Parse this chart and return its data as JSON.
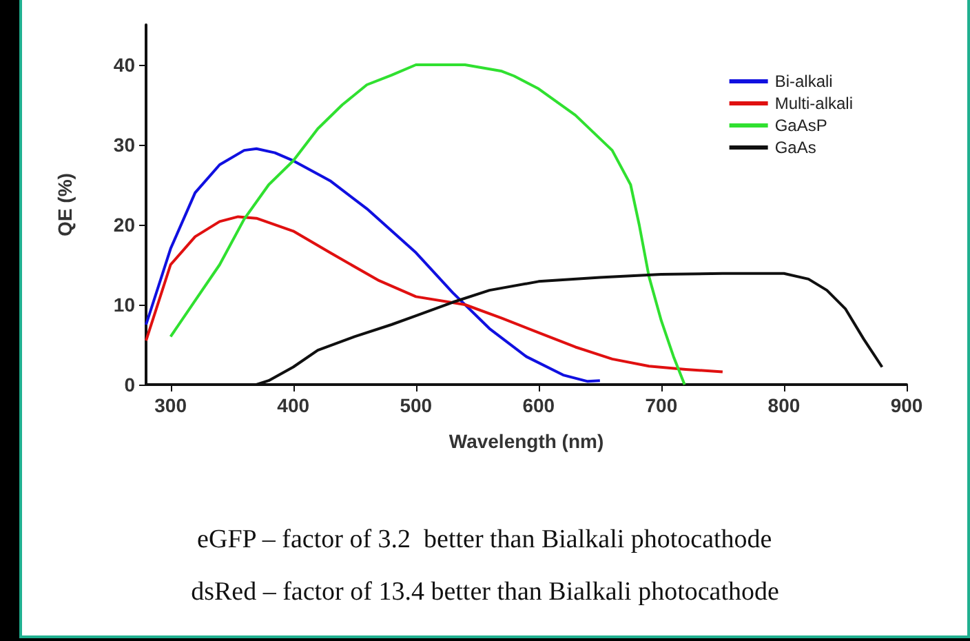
{
  "chart_data": {
    "type": "line",
    "xlabel": "Wavelength (nm)",
    "ylabel": "QE (%)",
    "xlim": [
      280,
      900
    ],
    "xticks": [
      300,
      400,
      500,
      600,
      700,
      800,
      900
    ],
    "ylim": [
      0,
      45
    ],
    "yticks": [
      0,
      10,
      20,
      30,
      40
    ],
    "grid": false,
    "legend": "top right",
    "marker": "none",
    "line_style": "solid",
    "series": [
      {
        "name": "Bi-alkali",
        "color": "#1010e0",
        "x": [
          280,
          300,
          320,
          340,
          360,
          370,
          385,
          400,
          430,
          460,
          500,
          530,
          560,
          590,
          620,
          640,
          650
        ],
        "values": [
          7.5,
          17,
          24,
          27.5,
          29.3,
          29.5,
          29,
          28,
          25.5,
          22,
          16.5,
          11.5,
          7,
          3.5,
          1.2,
          0.4,
          0.5
        ]
      },
      {
        "name": "Multi-alkali",
        "color": "#e01010",
        "x": [
          280,
          300,
          320,
          340,
          355,
          370,
          400,
          430,
          470,
          500,
          540,
          570,
          600,
          630,
          660,
          690,
          720,
          750
        ],
        "values": [
          5.5,
          15,
          18.5,
          20.4,
          21,
          20.8,
          19.2,
          16.5,
          13,
          11,
          10,
          8.3,
          6.5,
          4.7,
          3.2,
          2.3,
          1.9,
          1.6
        ]
      },
      {
        "name": "GaAsP",
        "color": "#30e030",
        "x": [
          300,
          320,
          340,
          360,
          380,
          400,
          420,
          440,
          460,
          480,
          500,
          540,
          570,
          580,
          600,
          630,
          660,
          675,
          682,
          690,
          700,
          710,
          719
        ],
        "values": [
          6,
          10.5,
          15,
          20.7,
          25,
          28,
          32,
          35,
          37.5,
          38.7,
          40,
          40,
          39.2,
          38.6,
          37,
          33.7,
          29.3,
          25,
          20,
          13.5,
          8,
          3.5,
          0
        ]
      },
      {
        "name": "GaAs",
        "color": "#101010",
        "x": [
          370,
          380,
          400,
          420,
          450,
          480,
          500,
          530,
          560,
          600,
          650,
          700,
          750,
          800,
          820,
          835,
          850,
          865,
          880
        ],
        "values": [
          0,
          0.5,
          2.2,
          4.3,
          6,
          7.5,
          8.6,
          10.3,
          11.8,
          12.9,
          13.4,
          13.8,
          13.9,
          13.9,
          13.2,
          11.8,
          9.5,
          5.7,
          2.2
        ]
      }
    ],
    "annotations": [
      "eGFP – factor of 3.2  better than Bialkali photocathode",
      "dsRed – factor of 13.4 better than Bialkali photocathode"
    ]
  }
}
